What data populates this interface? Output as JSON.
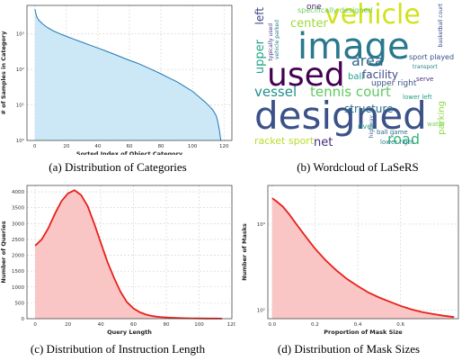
{
  "captions": {
    "a": "(a) Distribution of Categories",
    "b": "(b) Wordcloud of LaSeRS",
    "c": "(c) Distribution of Instruction Length",
    "d": "(d) Distribution of Mask Sizes"
  },
  "wordcloud": {
    "words": [
      {
        "text": "designed",
        "color": "#3b5289"
      },
      {
        "text": "image",
        "color": "#2a788e"
      },
      {
        "text": "vehicle",
        "color": "#d2e21b"
      },
      {
        "text": "used",
        "color": "#440154"
      },
      {
        "text": "tennis court",
        "color": "#5ec962"
      },
      {
        "text": "vessel",
        "color": "#21918c"
      },
      {
        "text": "area",
        "color": "#31688e"
      },
      {
        "text": "center",
        "color": "#9fda3a"
      },
      {
        "text": "facility",
        "color": "#3e4a89"
      },
      {
        "text": "structure",
        "color": "#2c728e"
      },
      {
        "text": "road",
        "color": "#35b779"
      },
      {
        "text": "upper right",
        "color": "#3b528b"
      },
      {
        "text": "racket sport",
        "color": "#b5de2b"
      },
      {
        "text": "net",
        "color": "#472d7b"
      },
      {
        "text": "specifically designed",
        "color": "#6ece58"
      },
      {
        "text": "upper",
        "color": "#20a486"
      },
      {
        "text": "left",
        "color": "#414487"
      },
      {
        "text": "ball",
        "color": "#1f9e89"
      },
      {
        "text": "one",
        "color": "#482878"
      },
      {
        "text": "parking",
        "color": "#90d743"
      },
      {
        "text": "lower right",
        "color": "#277f8e"
      },
      {
        "text": "sport played",
        "color": "#3b528b"
      },
      {
        "text": "transport",
        "color": "#25858e"
      },
      {
        "text": "typically used",
        "color": "#44397f"
      },
      {
        "text": "vehicle parked",
        "color": "#26828e"
      },
      {
        "text": "ball game",
        "color": "#2e6e8e"
      },
      {
        "text": "basketball court",
        "color": "#3f4889"
      },
      {
        "text": "lower left",
        "color": "#1fa088"
      },
      {
        "text": "serve",
        "color": "#46327e"
      },
      {
        "text": "river",
        "color": "#22a785"
      },
      {
        "text": "highway",
        "color": "#355f8d"
      },
      {
        "text": "water",
        "color": "#7ad151"
      }
    ]
  },
  "chart_data": [
    {
      "type": "line",
      "id": "a",
      "xlabel": "Sorted Index of Object Category",
      "ylabel": "# of Samples in Category",
      "xlim": [
        -5,
        125
      ],
      "ylim_log10": [
        0,
        3.8
      ],
      "yscale": "log",
      "xticks": [
        0,
        20,
        40,
        60,
        80,
        100,
        120
      ],
      "yticks": [
        {
          "label": "10⁰",
          "v": 0
        },
        {
          "label": "10¹",
          "v": 1
        },
        {
          "label": "10²",
          "v": 2
        },
        {
          "label": "10³",
          "v": 3
        }
      ],
      "fill": true,
      "color": "#1f77b4",
      "fill_color": "#cce8f6",
      "x": [
        0,
        1,
        2,
        3,
        5,
        8,
        12,
        16,
        20,
        25,
        30,
        35,
        40,
        45,
        50,
        55,
        60,
        65,
        70,
        75,
        80,
        85,
        90,
        95,
        100,
        104,
        108,
        111,
        113,
        115,
        116,
        117,
        118
      ],
      "y": [
        5000,
        3200,
        2600,
        2300,
        1900,
        1500,
        1200,
        1000,
        850,
        700,
        580,
        480,
        400,
        330,
        270,
        220,
        180,
        150,
        120,
        95,
        75,
        58,
        45,
        33,
        24,
        17,
        12,
        9,
        7,
        5,
        3.5,
        2,
        1
      ]
    },
    {
      "type": "area",
      "id": "c",
      "xlabel": "Query Length",
      "ylabel": "Number of Queries",
      "xlim": [
        -5,
        120
      ],
      "ylim": [
        0,
        4200
      ],
      "xticks": [
        0,
        20,
        40,
        60,
        80,
        100,
        120
      ],
      "yticks": [
        0,
        500,
        1000,
        1500,
        2000,
        2500,
        3000,
        3500,
        4000
      ],
      "color": "#e8201a",
      "fill_color": "#f9c5c5",
      "x": [
        0,
        4,
        8,
        12,
        16,
        20,
        24,
        28,
        32,
        36,
        40,
        44,
        48,
        52,
        56,
        60,
        64,
        68,
        72,
        76,
        80,
        84,
        88,
        92,
        96,
        100,
        105,
        110,
        114
      ],
      "y": [
        2300,
        2500,
        2850,
        3300,
        3700,
        3950,
        4050,
        3900,
        3550,
        3000,
        2400,
        1800,
        1300,
        850,
        520,
        320,
        200,
        125,
        80,
        55,
        40,
        28,
        20,
        15,
        10,
        8,
        6,
        5,
        4
      ]
    },
    {
      "type": "area",
      "id": "d",
      "xlabel": "Proportion of Mask Size",
      "ylabel": "Number of Masks",
      "xlim": [
        -0.02,
        0.87
      ],
      "ylim_log10": [
        1.9,
        3.45
      ],
      "yscale": "log",
      "xticks": [
        {
          "label": "0.0",
          "v": 0
        },
        {
          "label": "0.2",
          "v": 0.2
        },
        {
          "label": "0.4",
          "v": 0.4
        },
        {
          "label": "0.6",
          "v": 0.6
        }
      ],
      "yticks": [
        {
          "label": "10²",
          "v": 2
        },
        {
          "label": "10³",
          "v": 3
        }
      ],
      "color": "#e8201a",
      "fill_color": "#f9c5c5",
      "x": [
        0.0,
        0.02,
        0.05,
        0.08,
        0.12,
        0.16,
        0.2,
        0.25,
        0.3,
        0.35,
        0.4,
        0.45,
        0.5,
        0.55,
        0.6,
        0.65,
        0.7,
        0.75,
        0.8,
        0.85
      ],
      "y": [
        2000,
        1850,
        1600,
        1300,
        950,
        700,
        520,
        380,
        290,
        230,
        190,
        160,
        140,
        125,
        112,
        102,
        95,
        90,
        86,
        83
      ]
    }
  ]
}
